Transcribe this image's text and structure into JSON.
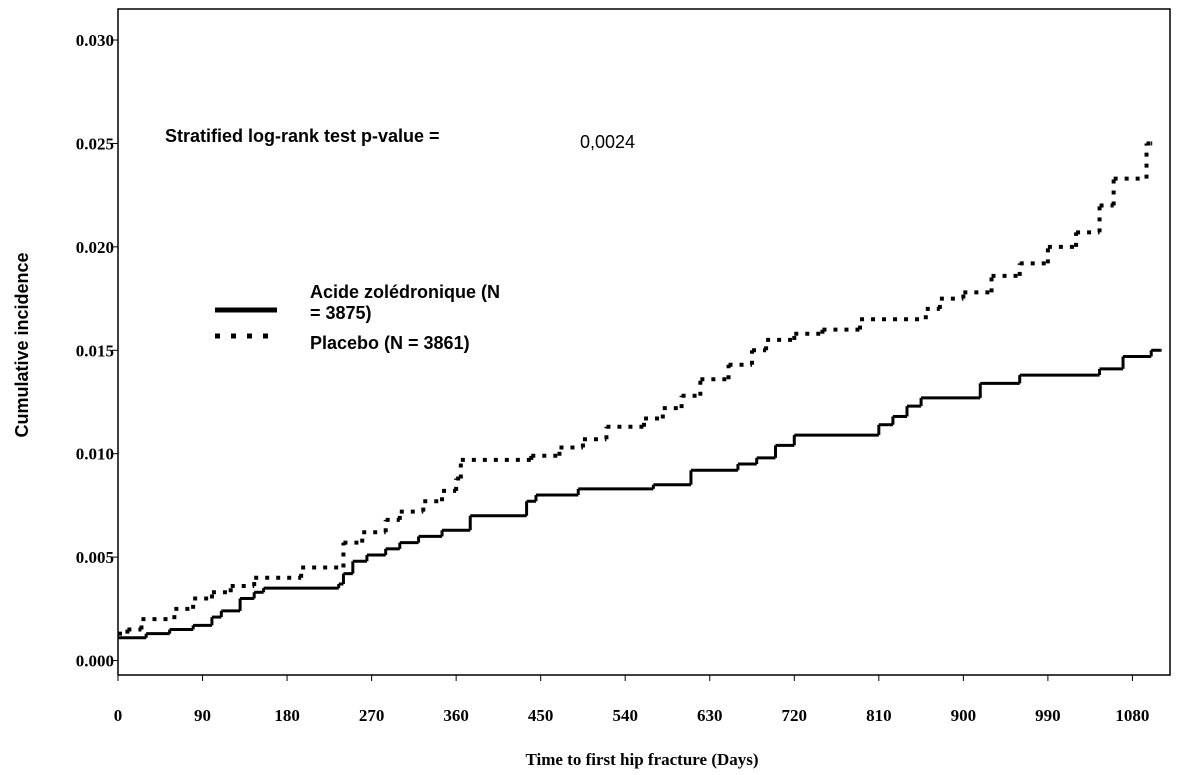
{
  "chart_data": {
    "type": "step",
    "y_label": "Cumulative incidence",
    "x_label": "Time to first hip fracture (Days)",
    "annotations": [
      {
        "text": "Stratified log-rank test p-value ="
      },
      {
        "text": "0,0024"
      }
    ],
    "xlim": [
      0,
      1120
    ],
    "ylim": [
      -0.0007,
      0.0315
    ],
    "xticks": [
      0,
      90,
      180,
      270,
      360,
      450,
      540,
      630,
      720,
      810,
      900,
      990,
      1080
    ],
    "yticks": [
      {
        "value": 0,
        "label": "0.000"
      },
      {
        "value": 0.005,
        "label": "0.005"
      },
      {
        "value": 0.01,
        "label": "0.010"
      },
      {
        "value": 0.015,
        "label": "0.015"
      },
      {
        "value": 0.02,
        "label": "0.020"
      },
      {
        "value": 0.025,
        "label": "0.025"
      },
      {
        "value": 0.03,
        "label": "0.030"
      }
    ],
    "series": [
      {
        "name": "Acide zolédronique (N = 3875)",
        "color": "#000000",
        "style": "solid",
        "x": [
          0,
          30,
          55,
          80,
          100,
          110,
          130,
          145,
          155,
          235,
          240,
          250,
          265,
          285,
          300,
          320,
          345,
          375,
          435,
          445,
          490,
          570,
          610,
          660,
          680,
          700,
          720,
          810,
          825,
          840,
          855,
          918,
          960,
          1045,
          1070,
          1100,
          1110
        ],
        "values": [
          0.0011,
          0.0013,
          0.0015,
          0.0017,
          0.0021,
          0.0024,
          0.003,
          0.0033,
          0.0035,
          0.0037,
          0.0042,
          0.0048,
          0.0051,
          0.0054,
          0.0057,
          0.006,
          0.0063,
          0.007,
          0.0077,
          0.008,
          0.0083,
          0.0085,
          0.0092,
          0.0095,
          0.0098,
          0.0104,
          0.0109,
          0.0114,
          0.0118,
          0.0123,
          0.0127,
          0.0134,
          0.0138,
          0.0141,
          0.0147,
          0.015,
          0.015
        ]
      },
      {
        "name": "Placebo (N = 3861)",
        "color": "#000000",
        "style": "dotted",
        "x": [
          0,
          10,
          25,
          60,
          80,
          100,
          120,
          145,
          195,
          240,
          260,
          285,
          300,
          325,
          345,
          360,
          365,
          440,
          470,
          495,
          520,
          560,
          580,
          600,
          620,
          650,
          675,
          690,
          720,
          750,
          790,
          860,
          875,
          900,
          930,
          960,
          990,
          1020,
          1045,
          1060,
          1095,
          1100
        ],
        "values": [
          0.0013,
          0.0015,
          0.002,
          0.0025,
          0.003,
          0.0033,
          0.0036,
          0.004,
          0.0045,
          0.0057,
          0.0062,
          0.0068,
          0.0072,
          0.0077,
          0.0082,
          0.0088,
          0.0097,
          0.0099,
          0.0103,
          0.0107,
          0.0113,
          0.0117,
          0.0122,
          0.0128,
          0.0136,
          0.0143,
          0.015,
          0.0155,
          0.0158,
          0.016,
          0.0165,
          0.017,
          0.0175,
          0.0178,
          0.0186,
          0.0192,
          0.02,
          0.0207,
          0.022,
          0.0233,
          0.025,
          0.025
        ]
      }
    ]
  }
}
